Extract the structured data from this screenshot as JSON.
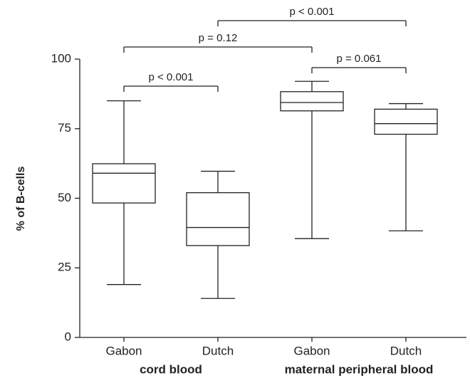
{
  "chart_data": {
    "type": "box",
    "ylabel": "% of B-cells",
    "categories": [
      "Gabon",
      "Dutch",
      "Gabon",
      "Dutch"
    ],
    "groups": [
      {
        "label": "cord blood",
        "between": [
          0,
          1
        ]
      },
      {
        "label": "maternal peripheral blood",
        "between": [
          2,
          3
        ]
      }
    ],
    "boxes": [
      {
        "min": 19,
        "q1": 48.3,
        "median": 59,
        "q3": 62.4,
        "max": 85
      },
      {
        "min": 14,
        "q1": 33,
        "median": 39.5,
        "q3": 52,
        "max": 59.7
      },
      {
        "min": 35.5,
        "q1": 81.4,
        "median": 84.4,
        "q3": 88.3,
        "max": 92
      },
      {
        "min": 38.3,
        "q1": 73,
        "median": 76.8,
        "q3": 82,
        "max": 84
      }
    ],
    "color": "#000000",
    "ylim": [
      0,
      100
    ],
    "yticks": [
      0,
      25,
      50,
      75,
      100
    ],
    "brackets": [
      {
        "label": "p < 0.001",
        "between": [
          0,
          1
        ]
      },
      {
        "label": "p = 0.12",
        "between": [
          0,
          2
        ]
      },
      {
        "label": "p < 0.001",
        "between": [
          1,
          3
        ]
      },
      {
        "label": "p = 0.061",
        "between": [
          2,
          3
        ]
      }
    ]
  }
}
